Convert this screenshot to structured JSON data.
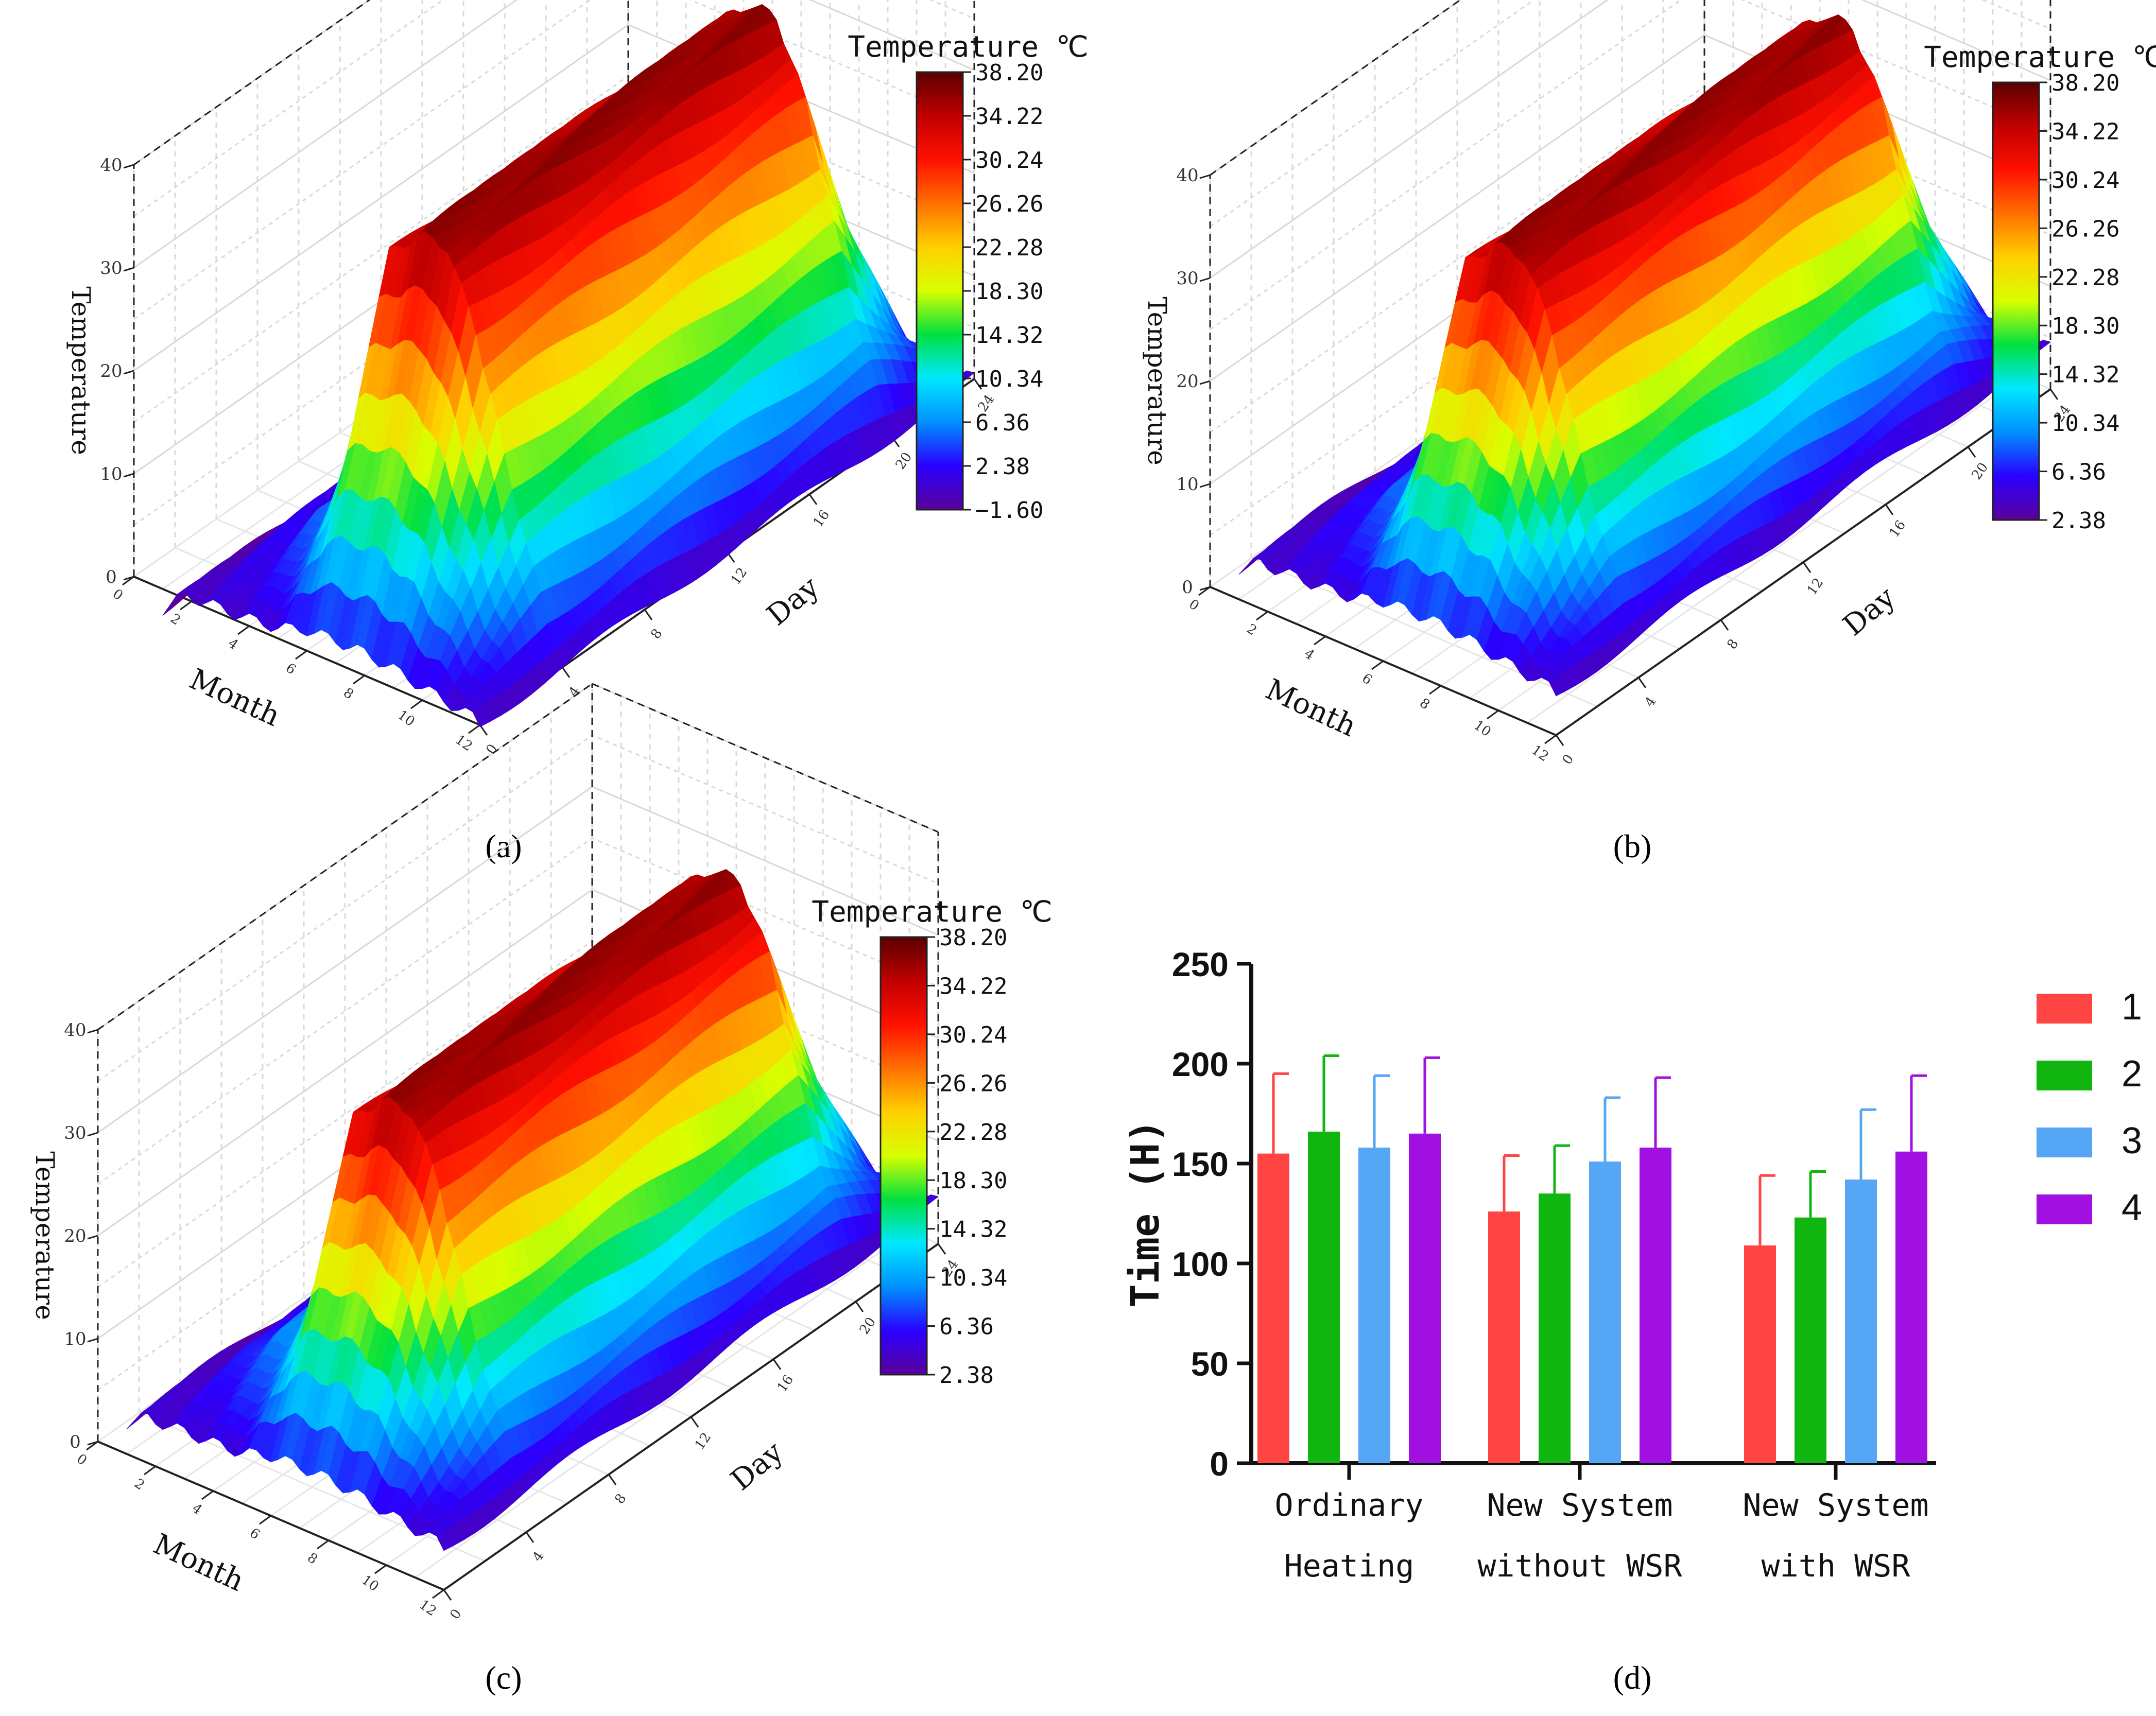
{
  "colors": {
    "bar_series": [
      "#ff4444",
      "#10b510",
      "#55a6f5",
      "#a010e0"
    ],
    "colormap": [
      "#5a009a",
      "#2a00ff",
      "#0090ff",
      "#00e8ff",
      "#00e040",
      "#d8ff00",
      "#ffd000",
      "#ff7000",
      "#ff1000",
      "#c00000",
      "#5a0000"
    ]
  },
  "panels": [
    {
      "label": "(a)",
      "chart_data": {
        "type": "surface3d",
        "xlabel": "Month",
        "ylabel": "Day",
        "zlabel": "Temperature",
        "x_ticks": [
          "0",
          "2",
          "4",
          "6",
          "8",
          "10",
          "12"
        ],
        "y_ticks": [
          "0",
          "4",
          "8",
          "12",
          "16",
          "20",
          "24"
        ],
        "z_ticks": [
          "0",
          "10",
          "20",
          "30",
          "40"
        ],
        "zlim": [
          0,
          40
        ],
        "colorbar_title": "Temperature ℃",
        "colorbar_ticks": [
          "38.20",
          "34.22",
          "30.24",
          "26.26",
          "22.28",
          "18.30",
          "14.32",
          "10.34",
          "6.36",
          "2.38",
          "−1.60"
        ],
        "colorbar_range": [
          -1.6,
          38.2
        ],
        "daily_peak_temperature_by_month": [
          -2,
          1,
          3,
          6,
          13,
          33,
          36,
          36,
          29,
          18,
          8,
          0
        ],
        "night_min_temperature": -1.6
      }
    },
    {
      "label": "(b)",
      "chart_data": {
        "type": "surface3d",
        "xlabel": "Month",
        "ylabel": "Day",
        "zlabel": "Temperature",
        "x_ticks": [
          "0",
          "2",
          "4",
          "6",
          "8",
          "10",
          "12"
        ],
        "y_ticks": [
          "0",
          "4",
          "8",
          "12",
          "16",
          "20",
          "24"
        ],
        "z_ticks": [
          "0",
          "10",
          "20",
          "30",
          "40"
        ],
        "zlim": [
          0,
          40
        ],
        "colorbar_title": "Temperature ℃",
        "colorbar_ticks": [
          "38.20",
          "34.22",
          "30.24",
          "26.26",
          "22.28",
          "18.30",
          "14.32",
          "10.34",
          "6.36",
          "2.38"
        ],
        "colorbar_range": [
          2.38,
          38.2
        ],
        "daily_peak_temperature_by_month": [
          3,
          5,
          7,
          9,
          15,
          33,
          36,
          36,
          30,
          19,
          10,
          4
        ],
        "night_min_temperature": 2.38
      }
    },
    {
      "label": "(c)",
      "chart_data": {
        "type": "surface3d",
        "xlabel": "Month",
        "ylabel": "Day",
        "zlabel": "Temperature",
        "x_ticks": [
          "0",
          "2",
          "4",
          "6",
          "8",
          "10",
          "12"
        ],
        "y_ticks": [
          "0",
          "4",
          "8",
          "12",
          "16",
          "20",
          "24"
        ],
        "z_ticks": [
          "0",
          "10",
          "20",
          "30",
          "40"
        ],
        "zlim": [
          0,
          40
        ],
        "colorbar_title": "Temperature ℃",
        "colorbar_ticks": [
          "38.20",
          "34.22",
          "30.24",
          "26.26",
          "22.28",
          "18.30",
          "14.32",
          "10.34",
          "6.36",
          "2.38"
        ],
        "colorbar_range": [
          2.38,
          38.2
        ],
        "daily_peak_temperature_by_month": [
          3,
          5,
          8,
          10,
          15,
          33,
          36,
          36,
          30,
          19,
          10,
          4
        ],
        "night_min_temperature": 2.38
      }
    },
    {
      "label": "(d)",
      "chart_data": {
        "type": "bar",
        "ylabel": "Time (H)",
        "ylim": [
          0,
          250
        ],
        "yticks": [
          0,
          50,
          100,
          150,
          200,
          250
        ],
        "categories": [
          [
            "Ordinary",
            "Heating"
          ],
          [
            "New System",
            "without WSR"
          ],
          [
            "New System",
            "with WSR"
          ]
        ],
        "series": [
          {
            "name": "1",
            "values": [
              155,
              126,
              109
            ],
            "errors": [
              40,
              28,
              35
            ]
          },
          {
            "name": "2",
            "values": [
              166,
              135,
              123
            ],
            "errors": [
              38,
              24,
              23
            ]
          },
          {
            "name": "3",
            "values": [
              158,
              151,
              142
            ],
            "errors": [
              36,
              32,
              35
            ]
          },
          {
            "name": "4",
            "values": [
              165,
              158,
              156
            ],
            "errors": [
              38,
              35,
              38
            ]
          }
        ],
        "legend_position": "right"
      }
    }
  ]
}
